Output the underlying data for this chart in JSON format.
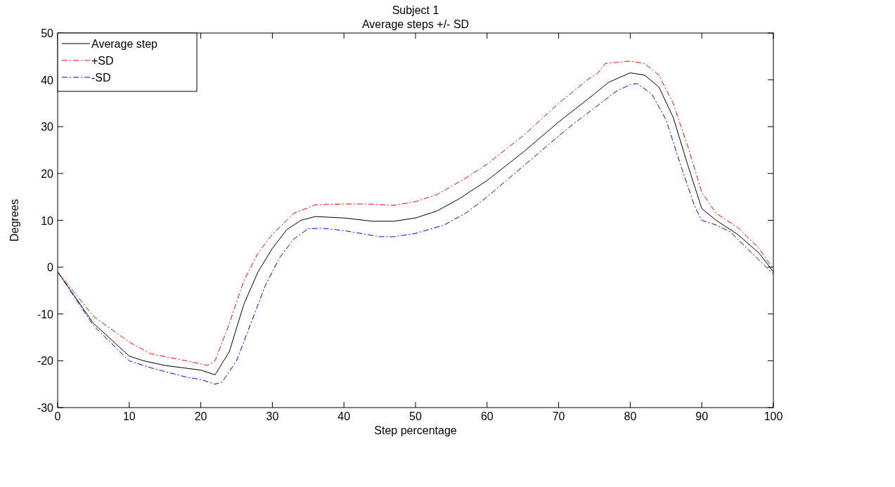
{
  "chart_data": {
    "type": "line",
    "title": "Subject 1",
    "subtitle": "Average steps +/- SD",
    "xlabel": "Step percentage",
    "ylabel": "Degrees",
    "xlim": [
      0,
      100
    ],
    "ylim": [
      -30,
      50
    ],
    "xticks": [
      0,
      10,
      20,
      30,
      40,
      50,
      60,
      70,
      80,
      90,
      100
    ],
    "yticks": [
      -30,
      -20,
      -10,
      0,
      10,
      20,
      30,
      40,
      50
    ],
    "grid": false,
    "legend": "top left",
    "marker": "none",
    "series": [
      {
        "name": "Average step",
        "color": "#000000",
        "line_style": "solid",
        "x": [
          0,
          5,
          10,
          12,
          15,
          20,
          22,
          24,
          26,
          28,
          30,
          32,
          34,
          36,
          40,
          44,
          47,
          50,
          53,
          56,
          60,
          65,
          70,
          75,
          77,
          80,
          82,
          84,
          86,
          88,
          90,
          92,
          95,
          98,
          100
        ],
        "values": [
          -1,
          -12,
          -19,
          -20,
          -21,
          -22,
          -23,
          -18,
          -8,
          -1,
          4,
          8,
          10,
          10.8,
          10.5,
          9.8,
          9.8,
          10.5,
          12,
          14.5,
          18.5,
          24.5,
          31,
          37,
          39.5,
          41.5,
          41,
          38.5,
          32,
          22,
          12.5,
          10,
          7,
          3,
          -1
        ]
      },
      {
        "name": "+SD",
        "color": "#ff0000",
        "line_style": "dashed",
        "x": [
          0,
          5,
          10,
          13,
          18,
          21,
          22,
          24,
          26,
          28,
          30,
          33,
          36,
          40,
          43,
          47,
          50,
          53,
          57,
          60,
          65,
          70,
          74,
          75.5,
          76.5,
          80,
          82,
          84,
          86,
          88,
          90,
          92,
          95,
          98,
          100
        ],
        "values": [
          -1,
          -10.5,
          -16,
          -18.5,
          -20,
          -21,
          -20,
          -12,
          -3,
          3,
          7,
          11.5,
          13.3,
          13.5,
          13.5,
          13.2,
          14,
          15.5,
          19,
          22,
          28,
          35,
          40,
          41.5,
          43.5,
          44,
          43.5,
          41,
          35,
          26,
          16,
          11.5,
          8.5,
          4,
          -0.5
        ]
      },
      {
        "name": "-SD",
        "color": "#0000ff",
        "line_style": "dashed",
        "x": [
          0,
          5,
          10,
          13,
          18,
          20,
          22,
          23,
          25,
          27,
          29,
          31,
          33,
          35,
          37,
          40,
          45,
          47,
          50,
          54,
          57,
          60,
          65,
          70,
          72,
          75,
          78,
          80,
          81,
          83,
          85,
          87,
          89,
          90,
          92,
          94,
          97,
          100
        ],
        "values": [
          -1,
          -12.5,
          -20,
          -21.5,
          -23.5,
          -24,
          -25,
          -24.5,
          -20,
          -12,
          -4,
          2,
          6,
          8.2,
          8.3,
          7.8,
          6.5,
          6.5,
          7.2,
          9,
          11.5,
          15,
          21.5,
          28,
          30.5,
          34,
          37.5,
          39,
          39.2,
          37,
          31.5,
          22,
          13,
          10,
          9,
          7.5,
          3,
          -1.5
        ]
      }
    ]
  }
}
